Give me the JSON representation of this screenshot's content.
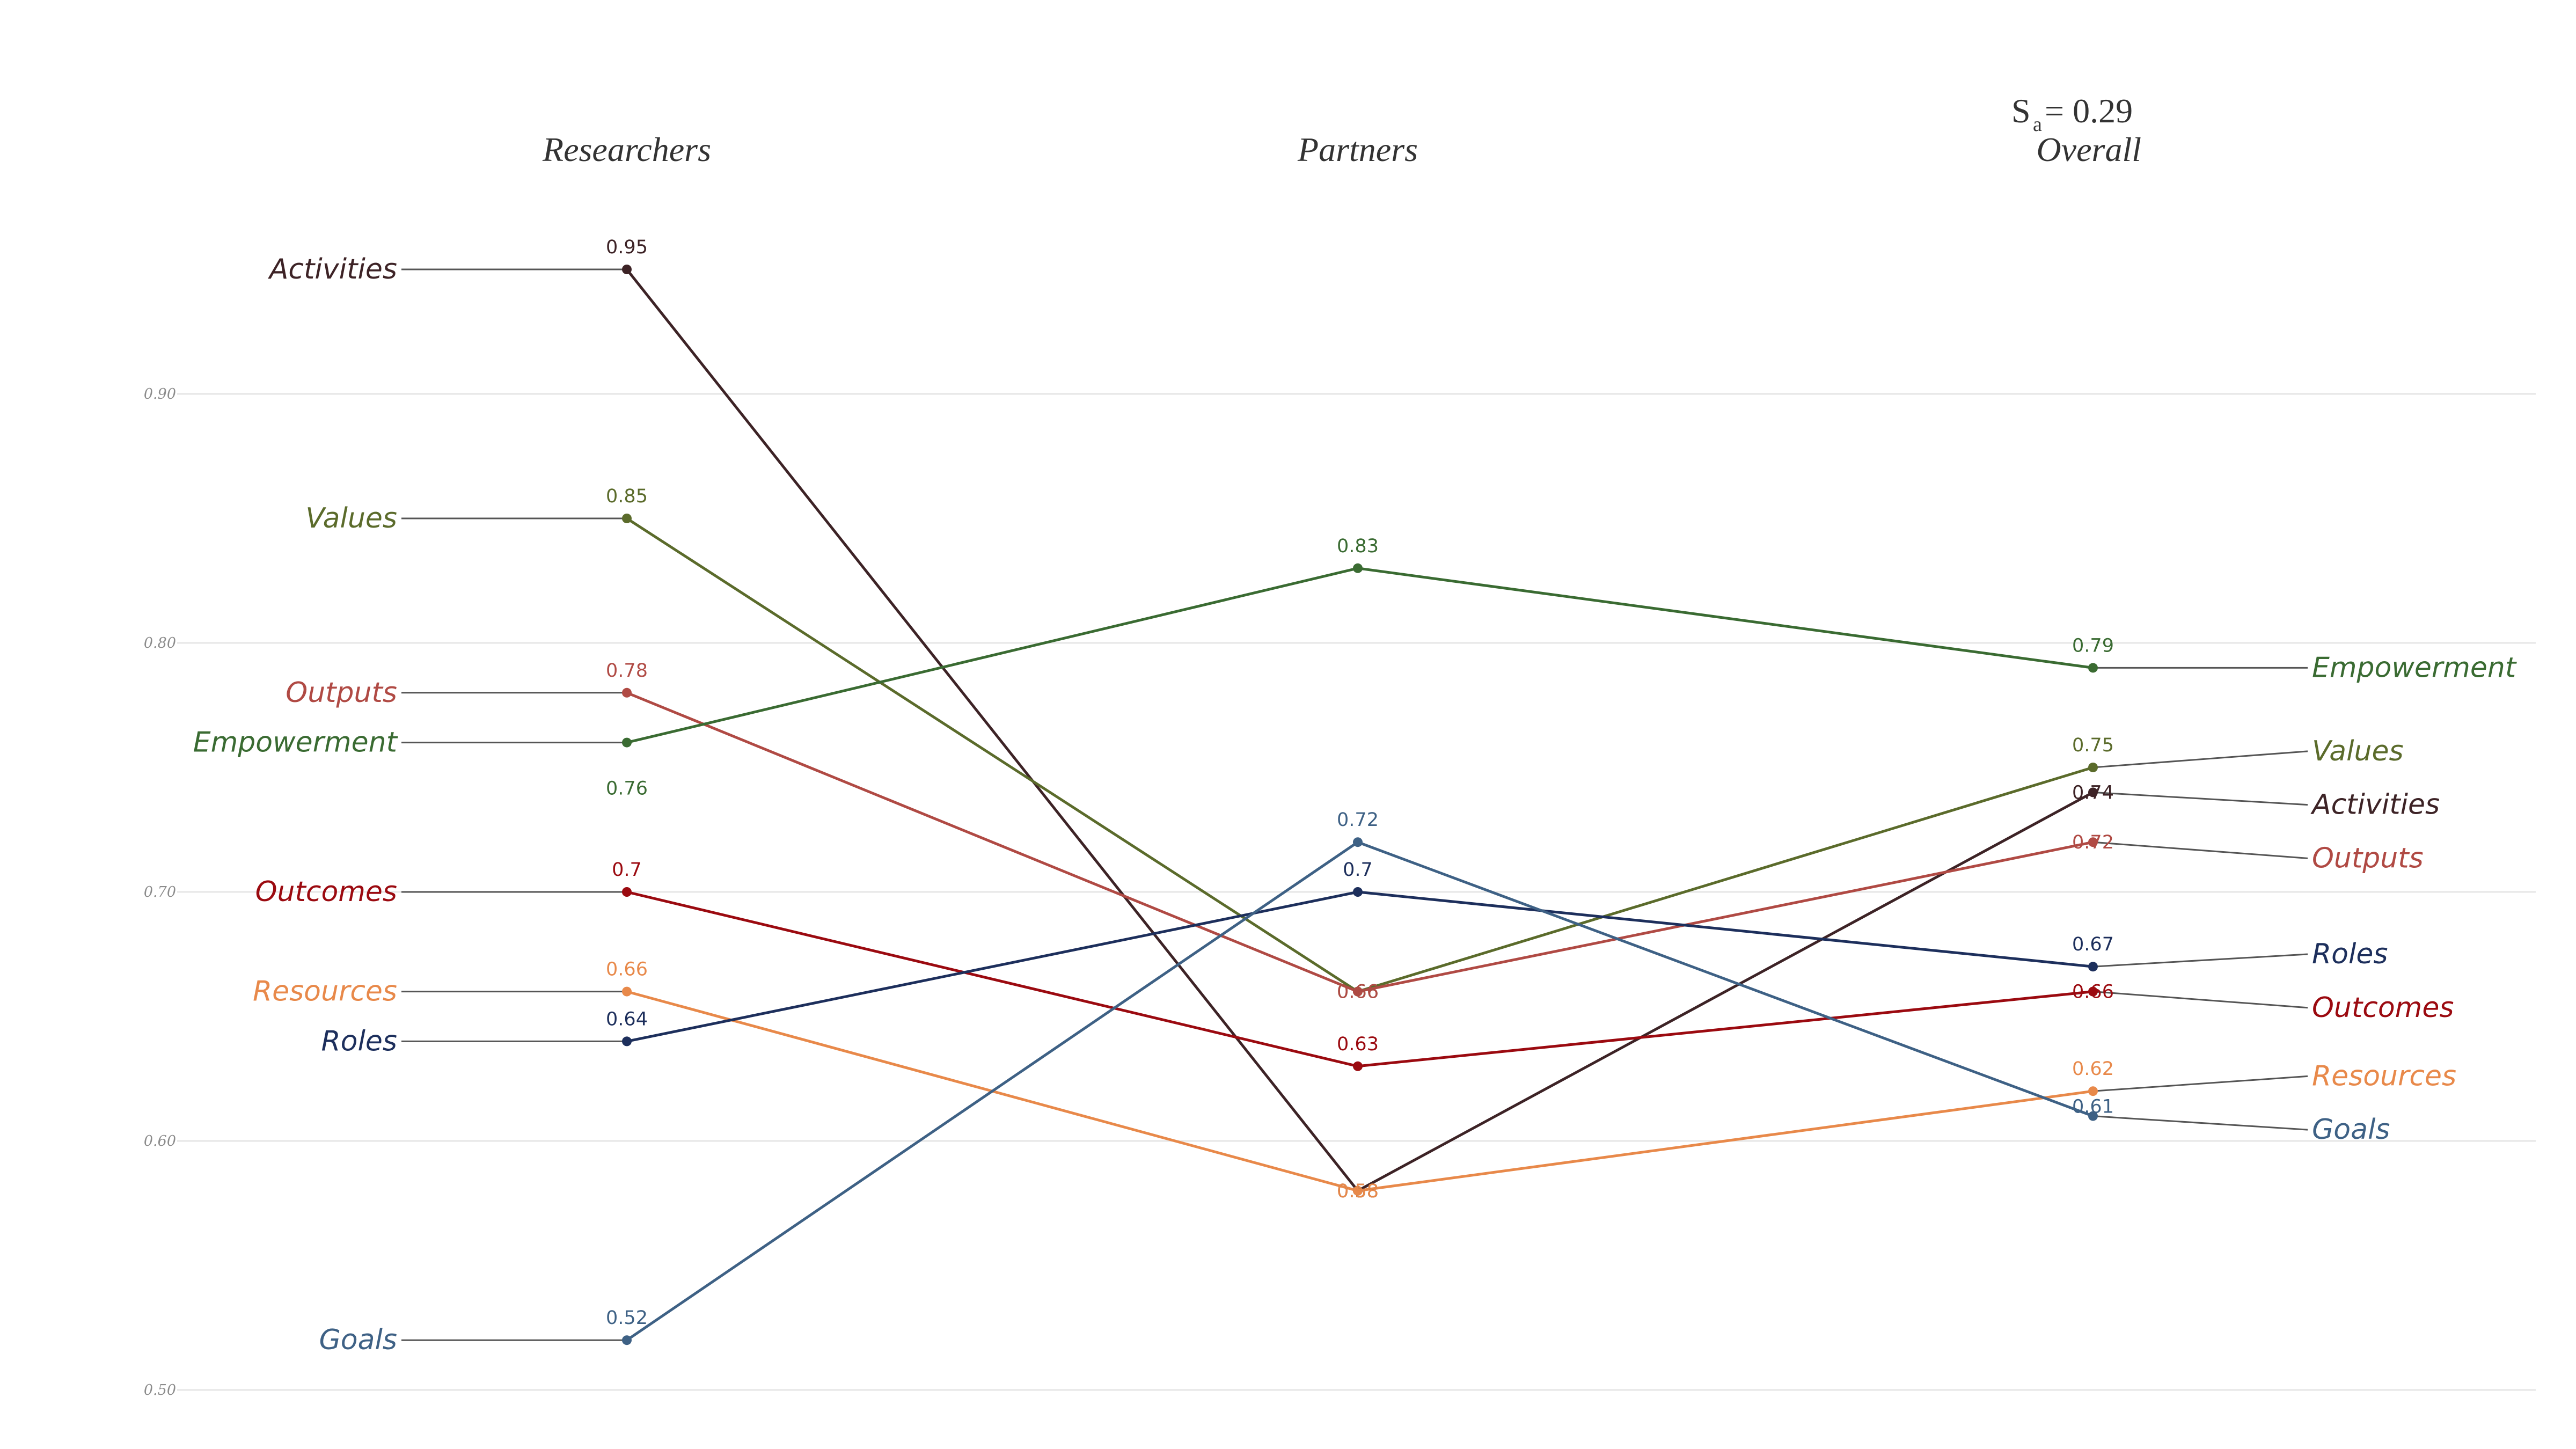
{
  "chart_data": {
    "type": "line",
    "subtype": "slopegraph",
    "title": "",
    "stat_label": "S",
    "stat_subscript": "a",
    "stat_value": "= 0.29",
    "categories": [
      "Researchers",
      "Partners",
      "Overall"
    ],
    "ylim": [
      0.5,
      0.97
    ],
    "yticks": [
      "0.50",
      "0.60",
      "0.70",
      "0.80",
      "0.90"
    ],
    "grid": true,
    "series": [
      {
        "name": "Activities",
        "color": "#3d2326",
        "values": [
          0.95,
          0.58,
          0.74
        ],
        "labels": [
          "0.95",
          "0.58",
          "0.74"
        ]
      },
      {
        "name": "Values",
        "color": "#5b6b2b",
        "values": [
          0.85,
          0.66,
          0.75
        ],
        "labels": [
          "0.85",
          "0.66",
          "0.75"
        ]
      },
      {
        "name": "Outputs",
        "color": "#b04a44",
        "values": [
          0.78,
          0.66,
          0.72
        ],
        "labels": [
          "0.78",
          "0.66",
          "0.72"
        ]
      },
      {
        "name": "Empowerment",
        "color": "#3a6b32",
        "values": [
          0.76,
          0.83,
          0.79
        ],
        "labels": [
          "0.76",
          "0.83",
          "0.79"
        ]
      },
      {
        "name": "Outcomes",
        "color": "#9b0a10",
        "values": [
          0.7,
          0.63,
          0.66
        ],
        "labels": [
          "0.7",
          "0.63",
          "0.66"
        ]
      },
      {
        "name": "Resources",
        "color": "#e8894a",
        "values": [
          0.66,
          0.58,
          0.62
        ],
        "labels": [
          "0.66",
          "0.58",
          "0.62"
        ]
      },
      {
        "name": "Roles",
        "color": "#1d2f5c",
        "values": [
          0.64,
          0.7,
          0.67
        ],
        "labels": [
          "0.64",
          "0.7",
          "0.67"
        ]
      },
      {
        "name": "Goals",
        "color": "#3e6185",
        "values": [
          0.52,
          0.72,
          0.61
        ],
        "labels": [
          "0.52",
          "0.72",
          "0.61"
        ]
      }
    ]
  }
}
